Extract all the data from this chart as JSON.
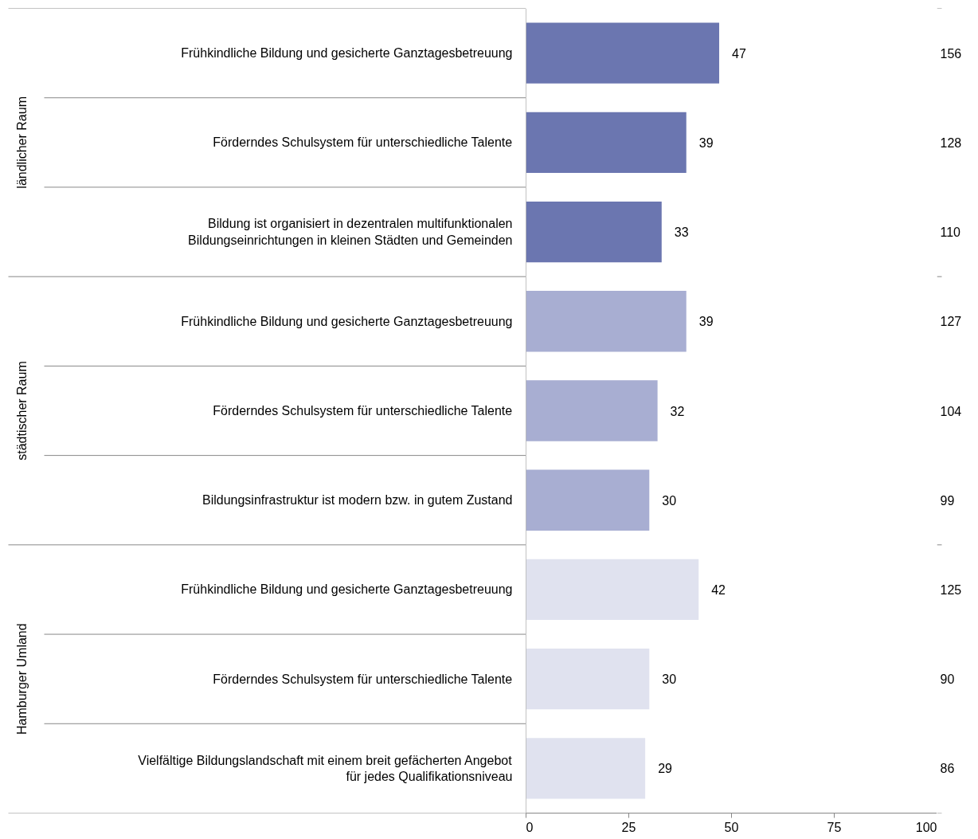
{
  "chart_data": {
    "type": "bar",
    "orientation": "horizontal",
    "categories": [
      "Frühkindliche Bildung und gesicherte Ganztagesbetreuung",
      "Förderndes Schulsystem für unterschiedliche Talente",
      "Bildung ist organisiert in dezentralen multifunktionalen\nBildungseinrichtungen in kleinen Städten und Gemeinden",
      "Frühkindliche Bildung und gesicherte Ganztagesbetreuung",
      "Förderndes Schulsystem für unterschiedliche Talente",
      "Bildungsinfrastruktur ist modern bzw. in gutem Zustand",
      "Frühkindliche Bildung und gesicherte Ganztagesbetreuung",
      "Förderndes Schulsystem für unterschiedliche Talente",
      "Vielfältige Bildungslandschaft mit einem breit gefächerten Angebot\nfür jedes Qualifikationsniveau"
    ],
    "values": [
      47,
      39,
      33,
      39,
      32,
      30,
      42,
      30,
      29
    ],
    "colors": [
      "#6b76b0",
      "#6b76b0",
      "#6b76b0",
      "#a8aed2",
      "#a8aed2",
      "#a8aed2",
      "#e0e2ef",
      "#e0e2ef",
      "#e0e2ef"
    ],
    "xlim": [
      0,
      100
    ],
    "xticks": [
      0,
      25,
      50,
      75,
      100
    ],
    "data_labels": true,
    "grid": false,
    "legend": false,
    "annotations": [
      "ländlicher Raum",
      "städtischer Raum",
      "Hamburger Umland",
      "156",
      "128",
      "110",
      "127",
      "104",
      "99",
      "125",
      "90",
      "86"
    ]
  }
}
